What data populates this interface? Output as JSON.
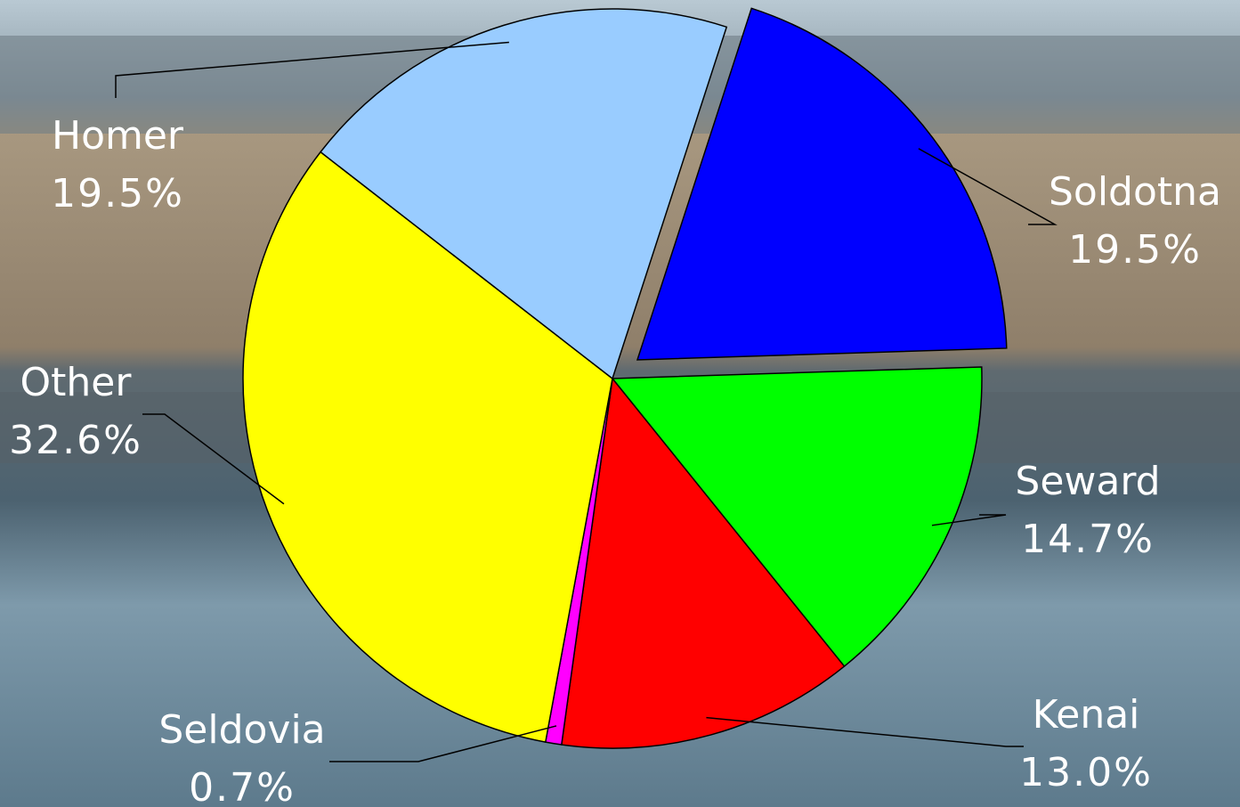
{
  "chart_data": {
    "type": "pie",
    "categories": [
      "Soldotna",
      "Seward",
      "Kenai",
      "Seldovia",
      "Other",
      "Homer"
    ],
    "values": [
      19.5,
      14.7,
      13.0,
      0.7,
      32.6,
      19.5
    ],
    "value_labels": [
      "19.5%",
      "14.7%",
      "13.0%",
      "0.7%",
      "32.6%",
      "19.5%"
    ],
    "colors": [
      "#0000ff",
      "#00ff00",
      "#ff0000",
      "#ff00ff",
      "#ffff00",
      "#99ccff"
    ],
    "exploded": [
      "Soldotna"
    ]
  }
}
